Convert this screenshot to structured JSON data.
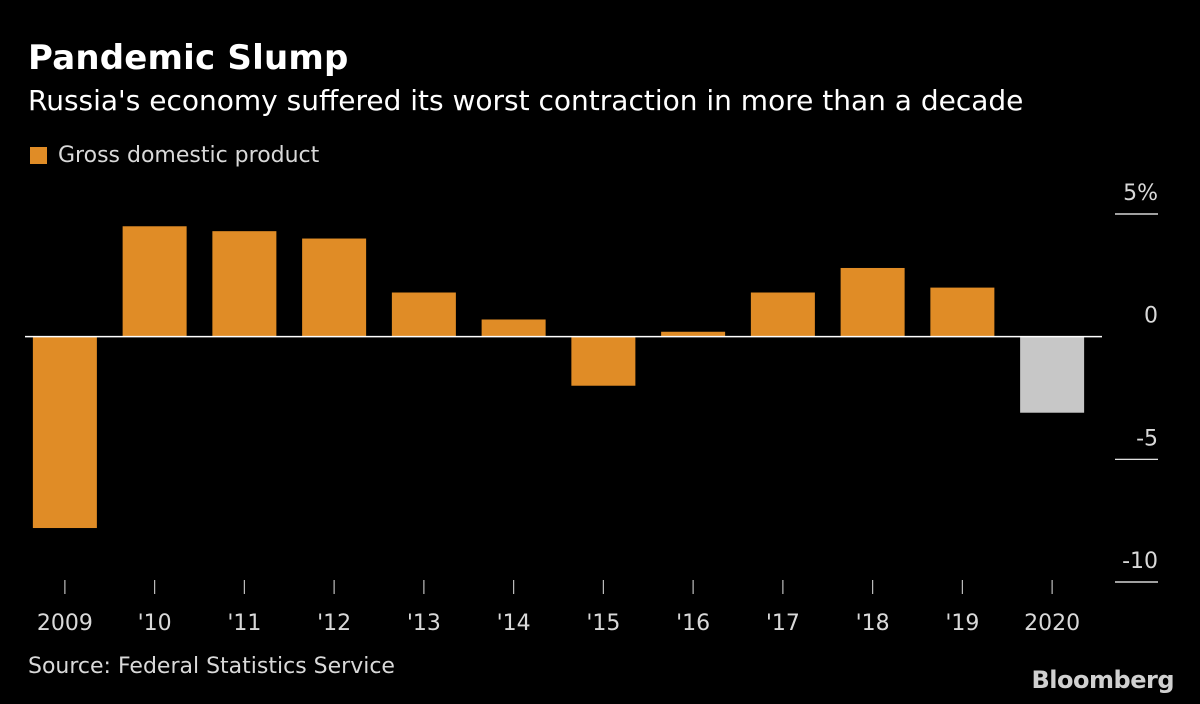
{
  "header": {
    "title": "Pandemic Slump",
    "subtitle": "Russia's economy suffered its worst contraction in more than a decade"
  },
  "footer": {
    "source": "Source: Federal Statistics Service",
    "brand": "Bloomberg"
  },
  "colors": {
    "background": "#000000",
    "bar": "#e08c26",
    "highlight_bar": "#c7c7c7",
    "axis": "#ffffff",
    "text": "#d9d9d9"
  },
  "chart_data": {
    "type": "bar",
    "title": "Pandemic Slump",
    "subtitle": "Russia's economy suffered its worst contraction in more than a decade",
    "xlabel": "",
    "ylabel": "",
    "categories": [
      "2009",
      "'10",
      "'11",
      "'12",
      "'13",
      "'14",
      "'15",
      "'16",
      "'17",
      "'18",
      "'19",
      "2020"
    ],
    "series": [
      {
        "name": "Gross domestic product",
        "values": [
          -7.8,
          4.5,
          4.3,
          4.0,
          1.8,
          0.7,
          -2.0,
          0.2,
          1.8,
          2.8,
          2.0,
          -3.1
        ]
      }
    ],
    "highlighted_categories": [
      "2020"
    ],
    "ylim": [
      -10,
      5
    ],
    "yticks": [
      5,
      0,
      -5,
      -10
    ],
    "ytick_labels": [
      "5%",
      "0",
      "-5",
      "-10"
    ],
    "legend": "top-left",
    "grid": false
  }
}
